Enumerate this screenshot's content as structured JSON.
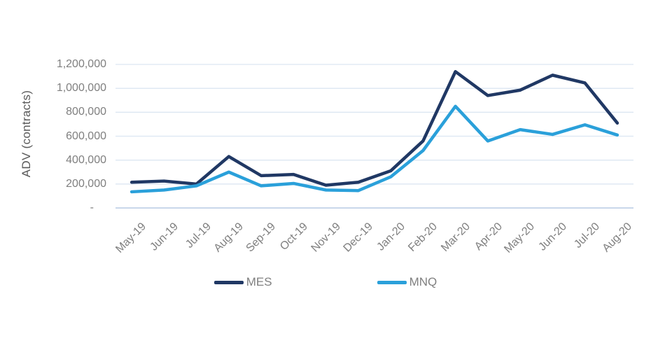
{
  "chart_data": {
    "type": "line",
    "title": "",
    "xlabel": "",
    "ylabel": "ADV (contracts)",
    "categories": [
      "May-19",
      "Jun-19",
      "Jul-19",
      "Aug-19",
      "Sep-19",
      "Oct-19",
      "Nov-19",
      "Dec-19",
      "Jan-20",
      "Feb-20",
      "Mar-20",
      "Apr-20",
      "May-20",
      "Jun-20",
      "Jul-20",
      "Aug-20"
    ],
    "series": [
      {
        "name": "MES",
        "color": "#203864",
        "values": [
          215000,
          225000,
          200000,
          430000,
          270000,
          280000,
          190000,
          215000,
          310000,
          560000,
          1140000,
          940000,
          985000,
          1110000,
          1045000,
          710000
        ]
      },
      {
        "name": "MNQ",
        "color": "#2aa0da",
        "values": [
          135000,
          150000,
          185000,
          300000,
          185000,
          205000,
          150000,
          145000,
          260000,
          480000,
          850000,
          560000,
          655000,
          615000,
          695000,
          610000
        ]
      }
    ],
    "y_ticks": [
      {
        "label": "-",
        "value": 0
      },
      {
        "label": "200,000",
        "value": 200000
      },
      {
        "label": "400,000",
        "value": 400000
      },
      {
        "label": "600,000",
        "value": 600000
      },
      {
        "label": "800,000",
        "value": 800000
      },
      {
        "label": "1,000,000",
        "value": 1000000
      },
      {
        "label": "1,200,000",
        "value": 1200000
      }
    ],
    "ylim": [
      0,
      1200000
    ],
    "grid": "horizontal",
    "legend_position": "bottom"
  },
  "style_colors": {
    "background": "#ffffff",
    "gridline": "#dce6f2",
    "zero_axis_line": "#c9d7ea",
    "tick_label": "#7f7f7f",
    "axis_title": "#595959"
  }
}
